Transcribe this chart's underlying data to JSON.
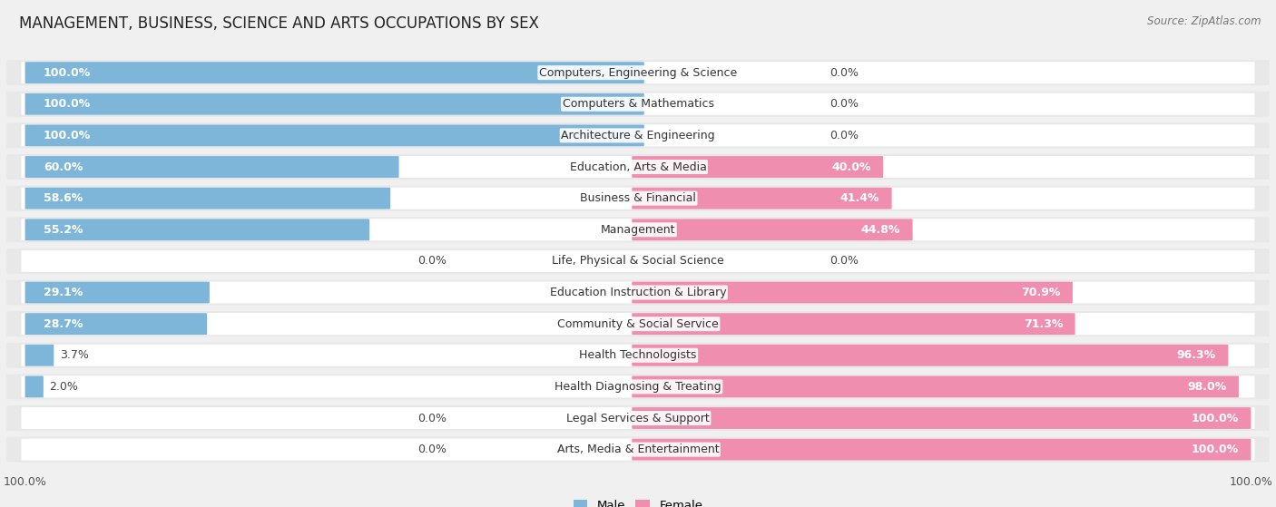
{
  "title": "MANAGEMENT, BUSINESS, SCIENCE AND ARTS OCCUPATIONS BY SEX",
  "source": "Source: ZipAtlas.com",
  "categories": [
    "Computers, Engineering & Science",
    "Computers & Mathematics",
    "Architecture & Engineering",
    "Education, Arts & Media",
    "Business & Financial",
    "Management",
    "Life, Physical & Social Science",
    "Education Instruction & Library",
    "Community & Social Service",
    "Health Technologists",
    "Health Diagnosing & Treating",
    "Legal Services & Support",
    "Arts, Media & Entertainment"
  ],
  "male": [
    100.0,
    100.0,
    100.0,
    60.0,
    58.6,
    55.2,
    0.0,
    29.1,
    28.7,
    3.7,
    2.0,
    0.0,
    0.0
  ],
  "female": [
    0.0,
    0.0,
    0.0,
    40.0,
    41.4,
    44.8,
    0.0,
    70.9,
    71.3,
    96.3,
    98.0,
    100.0,
    100.0
  ],
  "male_color": "#7EB6D9",
  "female_color": "#F08EB0",
  "bg_color": "#f0f0f0",
  "bar_bg_color": "#ffffff",
  "row_bg_color": "#e8e8e8",
  "bar_height": 0.68,
  "title_fontsize": 12,
  "label_fontsize": 9,
  "pct_fontsize": 9,
  "tick_fontsize": 9,
  "source_fontsize": 8.5
}
